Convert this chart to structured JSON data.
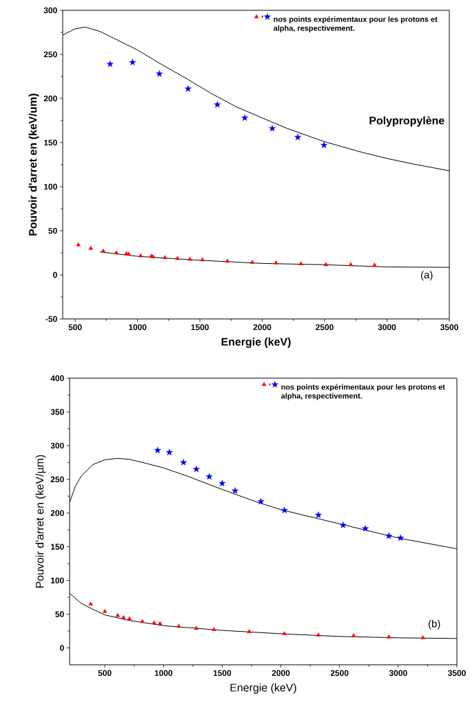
{
  "chart_data": [
    {
      "type": "scatter",
      "xlabel": "Energie (keV)",
      "ylabel": "Pouvoir d'arret en (keV/um)",
      "xlim": [
        400,
        3500
      ],
      "ylim": [
        -50,
        300
      ],
      "xticks": [
        500,
        1000,
        1500,
        2000,
        2500,
        3000,
        3500
      ],
      "yticks": [
        -50,
        0,
        50,
        100,
        150,
        200,
        250,
        300
      ],
      "legend": "top right",
      "annotations": [
        "(a)",
        "Polypropylène"
      ],
      "series": [
        {
          "name": ",",
          "marker": "triangle",
          "color": "#ff0000",
          "x": [
            525,
            625,
            725,
            830,
            910,
            930,
            1025,
            1110,
            1125,
            1220,
            1320,
            1420,
            1520,
            1720,
            1920,
            2110,
            2310,
            2510,
            2710,
            2900
          ],
          "values": [
            34,
            30,
            27,
            25,
            24,
            23.5,
            21.5,
            21,
            20.5,
            19.5,
            18.5,
            17.5,
            17,
            15.5,
            14,
            13.5,
            12.5,
            11.5,
            11.5,
            11
          ]
        },
        {
          "name": "nos points expérimentaux pour les protons et alpha, respectivement.",
          "marker": "star",
          "color": "#0000ff",
          "x": [
            780,
            960,
            1175,
            1405,
            1640,
            1860,
            2080,
            2285,
            2495
          ],
          "values": [
            239,
            241,
            228,
            211,
            193,
            178,
            166,
            156,
            147
          ]
        },
        {
          "type": "line",
          "color": "#000000",
          "x": [
            400,
            500,
            580,
            700,
            800,
            1000,
            1200,
            1400,
            1600,
            1800,
            2000,
            2200,
            2500,
            2800,
            3000,
            3200,
            3500
          ],
          "values": [
            272,
            279,
            281,
            276,
            269,
            255,
            238,
            222,
            205,
            190,
            178,
            166,
            151,
            139,
            132,
            126,
            118
          ]
        },
        {
          "type": "line",
          "color": "#000000",
          "x": [
            700,
            1000,
            1500,
            2000,
            2500,
            3000,
            3500
          ],
          "values": [
            26,
            21,
            16.5,
            13,
            11.5,
            9,
            8.5
          ]
        }
      ]
    },
    {
      "type": "scatter",
      "xlabel": "Energie  (keV)",
      "ylabel": "Pouvoir d'arret en (keV/µm)",
      "xlim": [
        200,
        3500
      ],
      "ylim": [
        -25,
        400
      ],
      "xticks": [
        500,
        1000,
        1500,
        2000,
        2500,
        3000,
        3500
      ],
      "yticks": [
        0,
        50,
        100,
        150,
        200,
        250,
        300,
        350,
        400
      ],
      "legend": "top right",
      "annotations": [
        "(b)"
      ],
      "series": [
        {
          "name": ",",
          "marker": "triangle",
          "color": "#ff0000",
          "x": [
            380,
            500,
            610,
            660,
            710,
            820,
            920,
            970,
            1130,
            1280,
            1430,
            1730,
            2030,
            2320,
            2620,
            2920,
            3210
          ],
          "values": [
            65,
            54,
            48,
            45,
            43,
            39,
            37,
            36,
            32,
            29,
            27,
            24,
            21,
            19,
            18,
            16,
            15
          ]
        },
        {
          "name": "nos points expérimentaux pour les protons et alpha, respectivement.",
          "marker": "star",
          "color": "#0000ff",
          "x": [
            950,
            1050,
            1170,
            1280,
            1390,
            1500,
            1610,
            1830,
            2030,
            2320,
            2530,
            2720,
            2920,
            3020
          ],
          "values": [
            293,
            290,
            275,
            265,
            254,
            244,
            233,
            217,
            204,
            197,
            182,
            177,
            166,
            163
          ]
        },
        {
          "type": "line",
          "color": "#000000",
          "x": [
            200,
            250,
            300,
            400,
            500,
            600,
            700,
            800,
            1000,
            1200,
            1500,
            1800,
            2000,
            2500,
            3000,
            3500
          ],
          "values": [
            216,
            240,
            255,
            272,
            279,
            281,
            280,
            276,
            267,
            255,
            235,
            216,
            205,
            184,
            163,
            147
          ]
        },
        {
          "type": "line",
          "color": "#000000",
          "x": [
            200,
            300,
            400,
            500,
            700,
            1000,
            1500,
            2000,
            2500,
            3000,
            3500
          ],
          "values": [
            81,
            66,
            57,
            49,
            41,
            33,
            26,
            21,
            17,
            15,
            14
          ]
        }
      ]
    }
  ]
}
